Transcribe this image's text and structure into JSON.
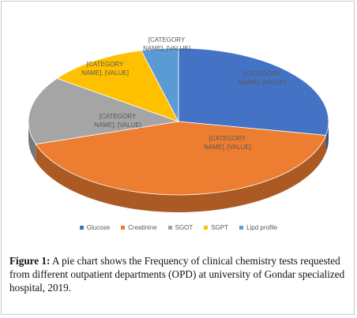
{
  "chart_data": {
    "type": "pie",
    "style": "3d",
    "categories": [
      "Glucose",
      "Creatinine",
      "SGOT",
      "SGPT",
      "Lipd profile"
    ],
    "shares_percent": [
      28,
      42,
      15,
      11,
      4
    ],
    "colors": [
      "#4472C4",
      "#ED7D31",
      "#A5A5A5",
      "#FFC000",
      "#5B9BD5"
    ],
    "data_labels": [
      [
        "[CATEGORY",
        "NAME], [VALUE]"
      ],
      [
        "[CATEGORY",
        "NAME], [VALUE]"
      ],
      [
        "[CATEGORY",
        "NAME], [VALUE]"
      ],
      [
        "[CATEGORY",
        "NAME], [VALUE]"
      ],
      [
        "[CATEGORY",
        "NAME], [VALUE]"
      ]
    ],
    "legend_position": "bottom"
  },
  "caption": {
    "label": "Figure 1:",
    "text": " A pie chart shows the Frequency of clinical chemistry tests requested from different outpatient departments (OPD) at university of Gondar specialized hospital, 2019."
  }
}
